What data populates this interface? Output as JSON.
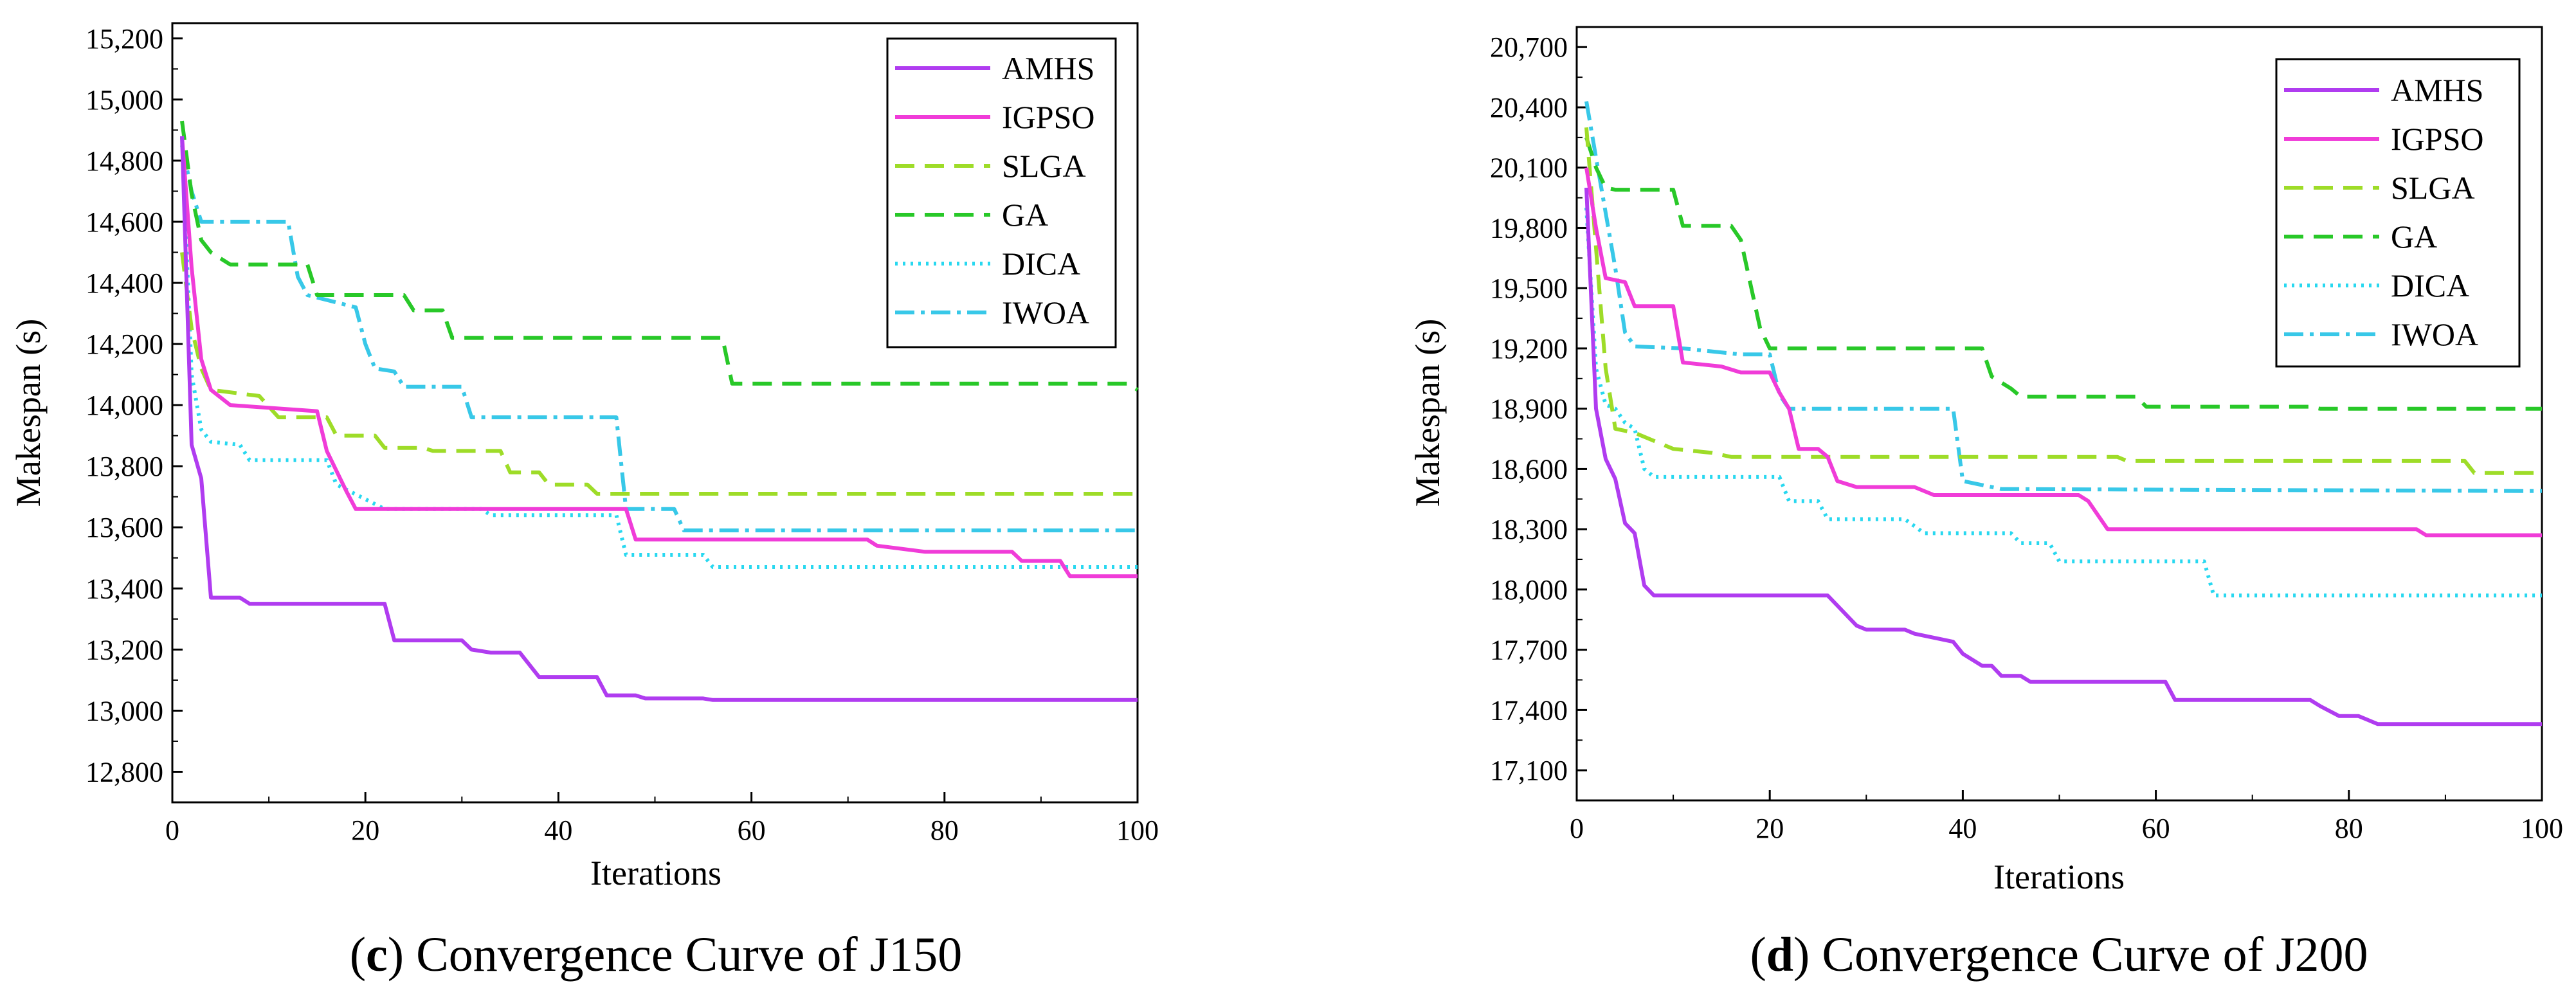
{
  "series_styles": {
    "AMHS": {
      "color": "#b03cf0",
      "dash": ""
    },
    "IGPSO": {
      "color": "#f03cd8",
      "dash": ""
    },
    "SLGA": {
      "color": "#9edc28",
      "dash": "30,16"
    },
    "GA": {
      "color": "#28c828",
      "dash": "30,16"
    },
    "DICA": {
      "color": "#28d8f0",
      "dash": "4,8"
    },
    "IWOA": {
      "color": "#38c8e8",
      "dash": "30,10,6,10"
    }
  },
  "chart_data": [
    {
      "type": "line",
      "caption_letter": "c",
      "caption_text": ") Convergence Curve of J150",
      "xlabel": "Iterations",
      "ylabel": "Makespan (s)",
      "xlim": [
        0,
        100
      ],
      "ylim": [
        12700,
        15250
      ],
      "xticks": [
        0,
        20,
        40,
        60,
        80,
        100
      ],
      "xtick_labels": [
        "0",
        "20",
        "40",
        "60",
        "80",
        "100"
      ],
      "yticks": [
        12800,
        13000,
        13200,
        13400,
        13600,
        13800,
        14000,
        14200,
        14400,
        14600,
        14800,
        15000,
        15200
      ],
      "ytick_labels": [
        "12,800",
        "13,000",
        "13,200",
        "13,400",
        "13,600",
        "13,800",
        "14,000",
        "14,200",
        "14,400",
        "14,600",
        "14,800",
        "15,000",
        "15,200"
      ],
      "legend_position": "top-right",
      "grid": false,
      "series": [
        {
          "name": "AMHS",
          "points": [
            [
              1,
              14880
            ],
            [
              2,
              13870
            ],
            [
              3,
              13760
            ],
            [
              4,
              13370
            ],
            [
              7,
              13370
            ],
            [
              8,
              13350
            ],
            [
              22,
              13350
            ],
            [
              23,
              13230
            ],
            [
              30,
              13230
            ],
            [
              31,
              13200
            ],
            [
              33,
              13190
            ],
            [
              36,
              13190
            ],
            [
              38,
              13110
            ],
            [
              44,
              13110
            ],
            [
              45,
              13050
            ],
            [
              48,
              13050
            ],
            [
              49,
              13040
            ],
            [
              55,
              13040
            ],
            [
              56,
              13035
            ],
            [
              100,
              13035
            ]
          ]
        },
        {
          "name": "IGPSO",
          "points": [
            [
              1,
              14880
            ],
            [
              2,
              14450
            ],
            [
              3,
              14150
            ],
            [
              4,
              14050
            ],
            [
              6,
              14000
            ],
            [
              15,
              13980
            ],
            [
              16,
              13850
            ],
            [
              18,
              13720
            ],
            [
              19,
              13660
            ],
            [
              47,
              13660
            ],
            [
              48,
              13560
            ],
            [
              72,
              13560
            ],
            [
              73,
              13540
            ],
            [
              78,
              13520
            ],
            [
              87,
              13520
            ],
            [
              88,
              13490
            ],
            [
              92,
              13490
            ],
            [
              93,
              13440
            ],
            [
              100,
              13440
            ]
          ]
        },
        {
          "name": "SLGA",
          "points": [
            [
              1,
              14500
            ],
            [
              2,
              14250
            ],
            [
              3,
              14120
            ],
            [
              4,
              14050
            ],
            [
              9,
              14030
            ],
            [
              11,
              13960
            ],
            [
              16,
              13960
            ],
            [
              17,
              13900
            ],
            [
              21,
              13900
            ],
            [
              22,
              13860
            ],
            [
              26,
              13860
            ],
            [
              27,
              13850
            ],
            [
              34,
              13850
            ],
            [
              35,
              13780
            ],
            [
              38,
              13780
            ],
            [
              39,
              13740
            ],
            [
              43,
              13740
            ],
            [
              44,
              13710
            ],
            [
              100,
              13710
            ]
          ]
        },
        {
          "name": "GA",
          "points": [
            [
              1,
              14930
            ],
            [
              2,
              14690
            ],
            [
              3,
              14540
            ],
            [
              4,
              14500
            ],
            [
              6,
              14460
            ],
            [
              14,
              14460
            ],
            [
              15,
              14360
            ],
            [
              24,
              14360
            ],
            [
              25,
              14310
            ],
            [
              28,
              14310
            ],
            [
              29,
              14220
            ],
            [
              57,
              14220
            ],
            [
              58,
              14070
            ],
            [
              99,
              14070
            ],
            [
              100,
              14050
            ]
          ]
        },
        {
          "name": "DICA",
          "points": [
            [
              1,
              14880
            ],
            [
              2,
              14100
            ],
            [
              3,
              13920
            ],
            [
              4,
              13880
            ],
            [
              7,
              13870
            ],
            [
              8,
              13820
            ],
            [
              16,
              13820
            ],
            [
              17,
              13740
            ],
            [
              22,
              13660
            ],
            [
              32,
              13660
            ],
            [
              33,
              13640
            ],
            [
              46,
              13640
            ],
            [
              47,
              13510
            ],
            [
              55,
              13510
            ],
            [
              56,
              13470
            ],
            [
              100,
              13470
            ]
          ]
        },
        {
          "name": "IWOA",
          "points": [
            [
              1,
              14850
            ],
            [
              2,
              14700
            ],
            [
              3,
              14600
            ],
            [
              12,
              14600
            ],
            [
              13,
              14420
            ],
            [
              14,
              14360
            ],
            [
              19,
              14320
            ],
            [
              20,
              14200
            ],
            [
              21,
              14120
            ],
            [
              23,
              14110
            ],
            [
              24,
              14060
            ],
            [
              30,
              14060
            ],
            [
              31,
              13960
            ],
            [
              46,
              13960
            ],
            [
              47,
              13660
            ],
            [
              52,
              13660
            ],
            [
              53,
              13590
            ],
            [
              100,
              13590
            ]
          ]
        }
      ]
    },
    {
      "type": "line",
      "caption_letter": "d",
      "caption_text": ") Convergence Curve of J200",
      "xlabel": "Iterations",
      "ylabel": "Makespan (s)",
      "xlim": [
        0,
        100
      ],
      "ylim": [
        16950,
        20800
      ],
      "xticks": [
        0,
        20,
        40,
        60,
        80,
        100
      ],
      "xtick_labels": [
        "0",
        "20",
        "40",
        "60",
        "80",
        "100"
      ],
      "yticks": [
        17100,
        17400,
        17700,
        18000,
        18300,
        18600,
        18900,
        19200,
        19500,
        19800,
        20100,
        20400,
        20700
      ],
      "ytick_labels": [
        "17,100",
        "17,400",
        "17,700",
        "18,000",
        "18,300",
        "18,600",
        "18,900",
        "19,200",
        "19,500",
        "19,800",
        "20,100",
        "20,400",
        "20,700"
      ],
      "legend_position": "top-right",
      "grid": false,
      "series": [
        {
          "name": "AMHS",
          "points": [
            [
              1,
              20000
            ],
            [
              2,
              18900
            ],
            [
              3,
              18650
            ],
            [
              4,
              18550
            ],
            [
              5,
              18330
            ],
            [
              6,
              18280
            ],
            [
              7,
              18020
            ],
            [
              8,
              17970
            ],
            [
              26,
              17970
            ],
            [
              27,
              17920
            ],
            [
              29,
              17820
            ],
            [
              30,
              17800
            ],
            [
              34,
              17800
            ],
            [
              35,
              17780
            ],
            [
              37,
              17760
            ],
            [
              39,
              17740
            ],
            [
              40,
              17680
            ],
            [
              42,
              17620
            ],
            [
              43,
              17620
            ],
            [
              44,
              17570
            ],
            [
              46,
              17570
            ],
            [
              47,
              17540
            ],
            [
              61,
              17540
            ],
            [
              62,
              17450
            ],
            [
              76,
              17450
            ],
            [
              77,
              17420
            ],
            [
              79,
              17370
            ],
            [
              81,
              17370
            ],
            [
              83,
              17330
            ],
            [
              100,
              17330
            ]
          ]
        },
        {
          "name": "IGPSO",
          "points": [
            [
              1,
              20100
            ],
            [
              2,
              19800
            ],
            [
              3,
              19550
            ],
            [
              5,
              19530
            ],
            [
              6,
              19410
            ],
            [
              10,
              19410
            ],
            [
              11,
              19130
            ],
            [
              15,
              19110
            ],
            [
              17,
              19080
            ],
            [
              20,
              19080
            ],
            [
              21,
              18980
            ],
            [
              22,
              18900
            ],
            [
              23,
              18700
            ],
            [
              25,
              18700
            ],
            [
              26,
              18660
            ],
            [
              27,
              18540
            ],
            [
              29,
              18510
            ],
            [
              35,
              18510
            ],
            [
              37,
              18470
            ],
            [
              52,
              18470
            ],
            [
              53,
              18440
            ],
            [
              55,
              18300
            ],
            [
              87,
              18300
            ],
            [
              88,
              18270
            ],
            [
              100,
              18270
            ]
          ]
        },
        {
          "name": "SLGA",
          "points": [
            [
              1,
              20300
            ],
            [
              2,
              19700
            ],
            [
              3,
              19100
            ],
            [
              4,
              18800
            ],
            [
              6,
              18780
            ],
            [
              10,
              18700
            ],
            [
              14,
              18680
            ],
            [
              16,
              18660
            ],
            [
              56,
              18660
            ],
            [
              57,
              18640
            ],
            [
              92,
              18640
            ],
            [
              93,
              18580
            ],
            [
              100,
              18580
            ]
          ]
        },
        {
          "name": "GA",
          "points": [
            [
              1,
              20250
            ],
            [
              2,
              20100
            ],
            [
              3,
              20000
            ],
            [
              4,
              19990
            ],
            [
              10,
              19990
            ],
            [
              11,
              19810
            ],
            [
              16,
              19810
            ],
            [
              17,
              19740
            ],
            [
              19,
              19300
            ],
            [
              20,
              19200
            ],
            [
              42,
              19200
            ],
            [
              43,
              19060
            ],
            [
              45,
              19000
            ],
            [
              46,
              18960
            ],
            [
              58,
              18960
            ],
            [
              59,
              18910
            ],
            [
              76,
              18910
            ],
            [
              77,
              18900
            ],
            [
              100,
              18900
            ]
          ]
        },
        {
          "name": "DICA",
          "points": [
            [
              1,
              19900
            ],
            [
              2,
              19100
            ],
            [
              3,
              18920
            ],
            [
              4,
              18900
            ],
            [
              5,
              18830
            ],
            [
              6,
              18800
            ],
            [
              7,
              18600
            ],
            [
              8,
              18560
            ],
            [
              21,
              18560
            ],
            [
              22,
              18440
            ],
            [
              25,
              18440
            ],
            [
              26,
              18350
            ],
            [
              34,
              18350
            ],
            [
              36,
              18280
            ],
            [
              45,
              18280
            ],
            [
              46,
              18230
            ],
            [
              49,
              18230
            ],
            [
              50,
              18140
            ],
            [
              65,
              18140
            ],
            [
              66,
              17970
            ],
            [
              100,
              17970
            ]
          ]
        },
        {
          "name": "IWOA",
          "points": [
            [
              1,
              20430
            ],
            [
              2,
              20150
            ],
            [
              4,
              19600
            ],
            [
              5,
              19280
            ],
            [
              6,
              19210
            ],
            [
              11,
              19200
            ],
            [
              17,
              19170
            ],
            [
              20,
              19170
            ],
            [
              21,
              18970
            ],
            [
              22,
              18900
            ],
            [
              39,
              18900
            ],
            [
              40,
              18540
            ],
            [
              44,
              18500
            ],
            [
              100,
              18490
            ]
          ]
        }
      ]
    }
  ]
}
